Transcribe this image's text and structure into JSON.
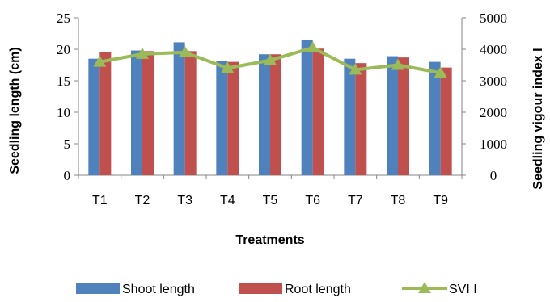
{
  "chart_data": {
    "type": "bar",
    "categories": [
      "T1",
      "T2",
      "T3",
      "T4",
      "T5",
      "T6",
      "T7",
      "T8",
      "T9"
    ],
    "series": [
      {
        "name": "Shoot length",
        "type": "bar",
        "axis": "left",
        "color": "#4F81BD",
        "values": [
          18.5,
          19.8,
          21.1,
          18.2,
          19.2,
          21.5,
          18.5,
          18.9,
          18.0
        ]
      },
      {
        "name": "Root length",
        "type": "bar",
        "axis": "left",
        "color": "#C0504D",
        "values": [
          19.5,
          19.7,
          19.7,
          18.0,
          19.2,
          20.1,
          17.8,
          18.7,
          17.1
        ]
      },
      {
        "name": "SVI I",
        "type": "line",
        "axis": "right",
        "color": "#9BBB59",
        "marker": "triangle",
        "values": [
          3600,
          3850,
          3900,
          3400,
          3650,
          4050,
          3350,
          3500,
          3250
        ]
      }
    ],
    "xlabel": "Treatments",
    "ylabel": "Seedling length (cm)",
    "y2label": "Seedling vigour index I",
    "ylim": [
      0,
      25
    ],
    "y2lim": [
      0,
      5000
    ],
    "yticks": [
      "0",
      "5",
      "10",
      "15",
      "20",
      "25"
    ],
    "y2ticks": [
      "0",
      "1000",
      "2000",
      "3000",
      "4000",
      "5000"
    ],
    "grid": false,
    "legend_position": "bottom"
  }
}
